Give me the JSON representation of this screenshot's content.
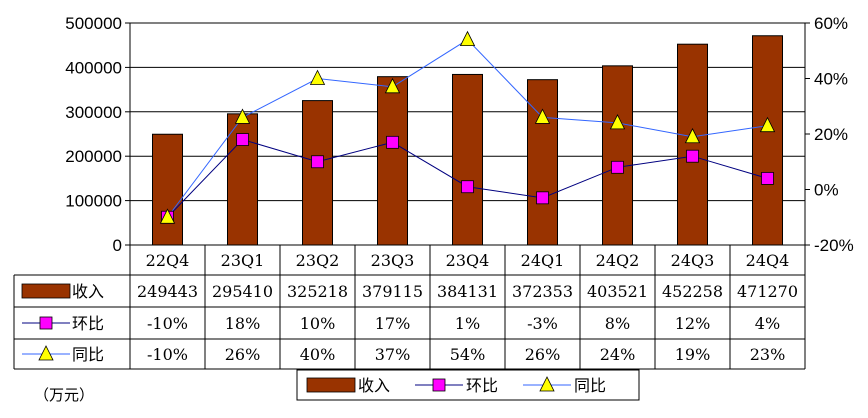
{
  "chart_data": {
    "type": "bar",
    "categories": [
      "22Q4",
      "23Q1",
      "23Q2",
      "23Q3",
      "23Q4",
      "24Q1",
      "24Q2",
      "24Q3",
      "24Q4"
    ],
    "series": [
      {
        "name": "收入",
        "kind": "bar",
        "axis": "left",
        "color": "#993300",
        "values": [
          249443,
          295410,
          325218,
          379115,
          384131,
          372353,
          403521,
          452258,
          471270
        ],
        "labels": [
          "249443",
          "295410",
          "325218",
          "379115",
          "384131",
          "372353",
          "403521",
          "452258",
          "471270"
        ]
      },
      {
        "name": "环比",
        "kind": "line",
        "axis": "right",
        "color": "#000080",
        "marker": "square",
        "marker_color": "#ff00ff",
        "values": [
          -10,
          18,
          10,
          17,
          1,
          -3,
          8,
          12,
          4
        ],
        "labels": [
          "-10%",
          "18%",
          "10%",
          "17%",
          "1%",
          "-3%",
          "8%",
          "12%",
          "4%"
        ]
      },
      {
        "name": "同比",
        "kind": "line",
        "axis": "right",
        "color": "#3366ff",
        "marker": "triangle",
        "marker_color": "#ffff00",
        "values": [
          -10,
          26,
          40,
          37,
          54,
          26,
          24,
          19,
          23
        ],
        "labels": [
          "-10%",
          "26%",
          "40%",
          "37%",
          "54%",
          "26%",
          "24%",
          "19%",
          "23%"
        ]
      }
    ],
    "y_left": {
      "min": 0,
      "max": 500000,
      "ticks": [
        "0",
        "100000",
        "200000",
        "300000",
        "400000",
        "500000"
      ]
    },
    "y_right": {
      "min": -20,
      "max": 60,
      "ticks": [
        "-20%",
        "0%",
        "20%",
        "40%",
        "60%"
      ]
    },
    "grid": true,
    "legend_position": "bottom",
    "unit_label": "（万元）"
  }
}
